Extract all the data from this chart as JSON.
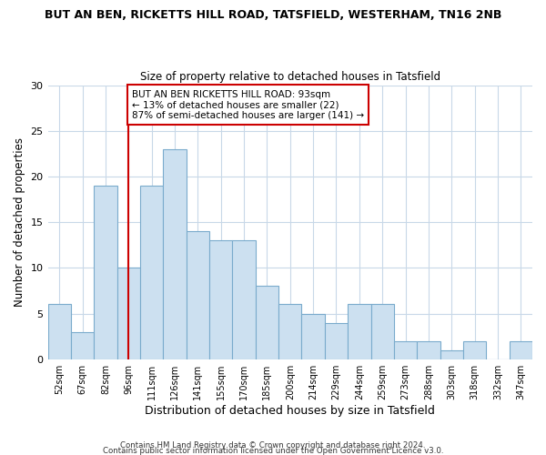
{
  "title": "BUT AN BEN, RICKETTS HILL ROAD, TATSFIELD, WESTERHAM, TN16 2NB",
  "subtitle": "Size of property relative to detached houses in Tatsfield",
  "xlabel": "Distribution of detached houses by size in Tatsfield",
  "ylabel": "Number of detached properties",
  "bar_labels": [
    "52sqm",
    "67sqm",
    "82sqm",
    "96sqm",
    "111sqm",
    "126sqm",
    "141sqm",
    "155sqm",
    "170sqm",
    "185sqm",
    "200sqm",
    "214sqm",
    "229sqm",
    "244sqm",
    "259sqm",
    "273sqm",
    "288sqm",
    "303sqm",
    "318sqm",
    "332sqm",
    "347sqm"
  ],
  "bar_values": [
    6,
    3,
    19,
    10,
    19,
    23,
    14,
    13,
    13,
    8,
    6,
    5,
    4,
    6,
    6,
    2,
    2,
    1,
    2,
    0,
    2
  ],
  "bar_color": "#cce0f0",
  "bar_edge_color": "#7aabcc",
  "vline_x": 3,
  "vline_color": "#cc0000",
  "ylim": [
    0,
    30
  ],
  "yticks": [
    0,
    5,
    10,
    15,
    20,
    25,
    30
  ],
  "annotation_text": "BUT AN BEN RICKETTS HILL ROAD: 93sqm\n← 13% of detached houses are smaller (22)\n87% of semi-detached houses are larger (141) →",
  "annotation_box_color": "#ffffff",
  "annotation_box_edge": "#cc0000",
  "footer_line1": "Contains HM Land Registry data © Crown copyright and database right 2024.",
  "footer_line2": "Contains public sector information licensed under the Open Government Licence v3.0.",
  "background_color": "#ffffff",
  "grid_color": "#c8d8e8"
}
